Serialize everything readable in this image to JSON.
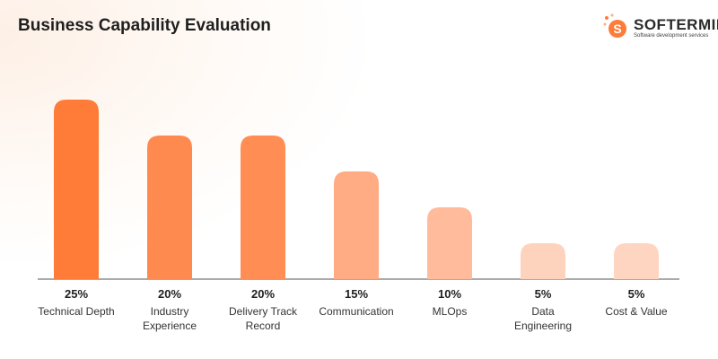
{
  "header": {
    "logo": {
      "name": "SOFTERMII",
      "tagline": "Software development services"
    }
  },
  "chart_data": {
    "type": "bar",
    "title": "Business Capability Evaluation",
    "categories": [
      "Technical Depth",
      "Industry Experience",
      "Delivery Track Record",
      "Communication",
      "MLOps",
      "Data Engineering",
      "Cost & Value"
    ],
    "values": [
      25,
      20,
      20,
      15,
      10,
      5,
      5
    ],
    "value_labels": [
      "25%",
      "20%",
      "20%",
      "15%",
      "10%",
      "5%",
      "5%"
    ],
    "colors": [
      "#ff7b38",
      "#ff8a4f",
      "#ff8d54",
      "#ffab84",
      "#ffbb9b",
      "#fed3bd",
      "#fed5c0"
    ]
  }
}
